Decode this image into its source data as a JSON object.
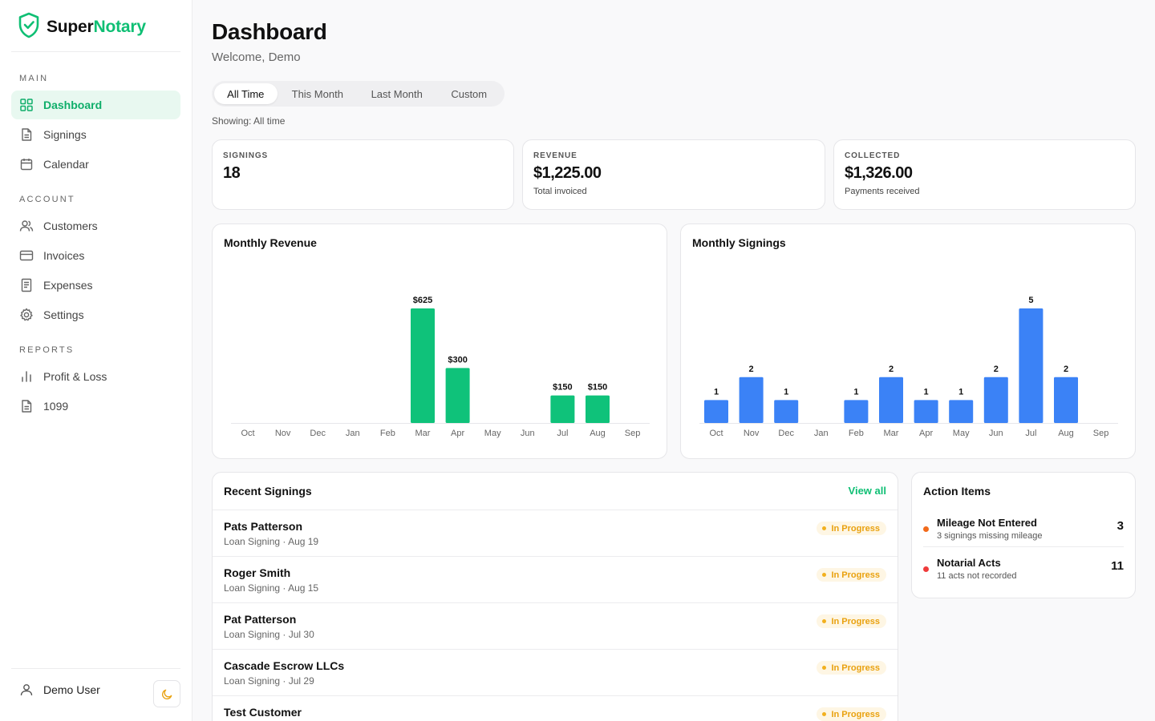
{
  "brand": {
    "name_part1": "Super",
    "name_part2": "Notary"
  },
  "sidebar": {
    "sections": [
      {
        "label": "MAIN",
        "items": [
          {
            "label": "Dashboard",
            "icon": "grid-icon",
            "active": true
          },
          {
            "label": "Signings",
            "icon": "document-icon"
          },
          {
            "label": "Calendar",
            "icon": "calendar-icon"
          }
        ]
      },
      {
        "label": "ACCOUNT",
        "items": [
          {
            "label": "Customers",
            "icon": "users-icon"
          },
          {
            "label": "Invoices",
            "icon": "credit-card-icon"
          },
          {
            "label": "Expenses",
            "icon": "receipt-icon"
          },
          {
            "label": "Settings",
            "icon": "gear-icon"
          }
        ]
      },
      {
        "label": "REPORTS",
        "items": [
          {
            "label": "Profit & Loss",
            "icon": "bar-chart-icon"
          },
          {
            "label": "1099",
            "icon": "document-icon"
          }
        ]
      }
    ],
    "user": {
      "name": "Demo User",
      "icon": "user-icon"
    },
    "theme_toggle_icon": "moon-icon"
  },
  "header": {
    "title": "Dashboard",
    "welcome": "Welcome, Demo"
  },
  "filters": {
    "tabs": [
      "All Time",
      "This Month",
      "Last Month",
      "Custom"
    ],
    "active": "All Time",
    "showing": "Showing: All time"
  },
  "stats": [
    {
      "label": "SIGNINGS",
      "value": "18",
      "sub": ""
    },
    {
      "label": "REVENUE",
      "value": "$1,225.00",
      "sub": "Total invoiced"
    },
    {
      "label": "COLLECTED",
      "value": "$1,326.00",
      "sub": "Payments received"
    }
  ],
  "chart_data": [
    {
      "type": "bar",
      "title": "Monthly Revenue",
      "categories": [
        "Oct",
        "Nov",
        "Dec",
        "Jan",
        "Feb",
        "Mar",
        "Apr",
        "May",
        "Jun",
        "Jul",
        "Aug",
        "Sep"
      ],
      "values": [
        0,
        0,
        0,
        0,
        0,
        625,
        300,
        0,
        0,
        150,
        150,
        0
      ],
      "value_labels": [
        "",
        "",
        "",
        "",
        "",
        "$625",
        "$300",
        "",
        "",
        "$150",
        "$150",
        ""
      ],
      "color": "#0fc27a",
      "ylim": [
        0,
        625
      ],
      "grid": false
    },
    {
      "type": "bar",
      "title": "Monthly Signings",
      "categories": [
        "Oct",
        "Nov",
        "Dec",
        "Jan",
        "Feb",
        "Mar",
        "Apr",
        "May",
        "Jun",
        "Jul",
        "Aug",
        "Sep"
      ],
      "values": [
        1,
        2,
        1,
        0,
        1,
        2,
        1,
        1,
        2,
        5,
        2,
        0
      ],
      "value_labels": [
        "1",
        "2",
        "1",
        "",
        "1",
        "2",
        "1",
        "1",
        "2",
        "5",
        "2",
        ""
      ],
      "color": "#3b82f6",
      "ylim": [
        0,
        5
      ],
      "grid": false
    }
  ],
  "recent_signings": {
    "title": "Recent Signings",
    "view_all": "View all",
    "rows": [
      {
        "name": "Pats Patterson",
        "meta": "Loan Signing · Aug 19",
        "status": "In Progress"
      },
      {
        "name": "Roger Smith",
        "meta": "Loan Signing · Aug 15",
        "status": "In Progress"
      },
      {
        "name": "Pat Patterson",
        "meta": "Loan Signing · Jul 30",
        "status": "In Progress"
      },
      {
        "name": "Cascade Escrow LLCs",
        "meta": "Loan Signing · Jul 29",
        "status": "In Progress"
      },
      {
        "name": "Test Customer",
        "meta": "",
        "status": "In Progress"
      }
    ]
  },
  "action_items": {
    "title": "Action Items",
    "items": [
      {
        "title": "Mileage Not Entered",
        "sub": "3 signings missing mileage",
        "count": "3",
        "color": "#f26a1b"
      },
      {
        "title": "Notarial Acts",
        "sub": "11 acts not recorded",
        "count": "11",
        "color": "#ef3b3b"
      }
    ]
  },
  "colors": {
    "accent": "#0fbf74",
    "warning": "#e9a10f",
    "chart_blue": "#3b82f6"
  }
}
